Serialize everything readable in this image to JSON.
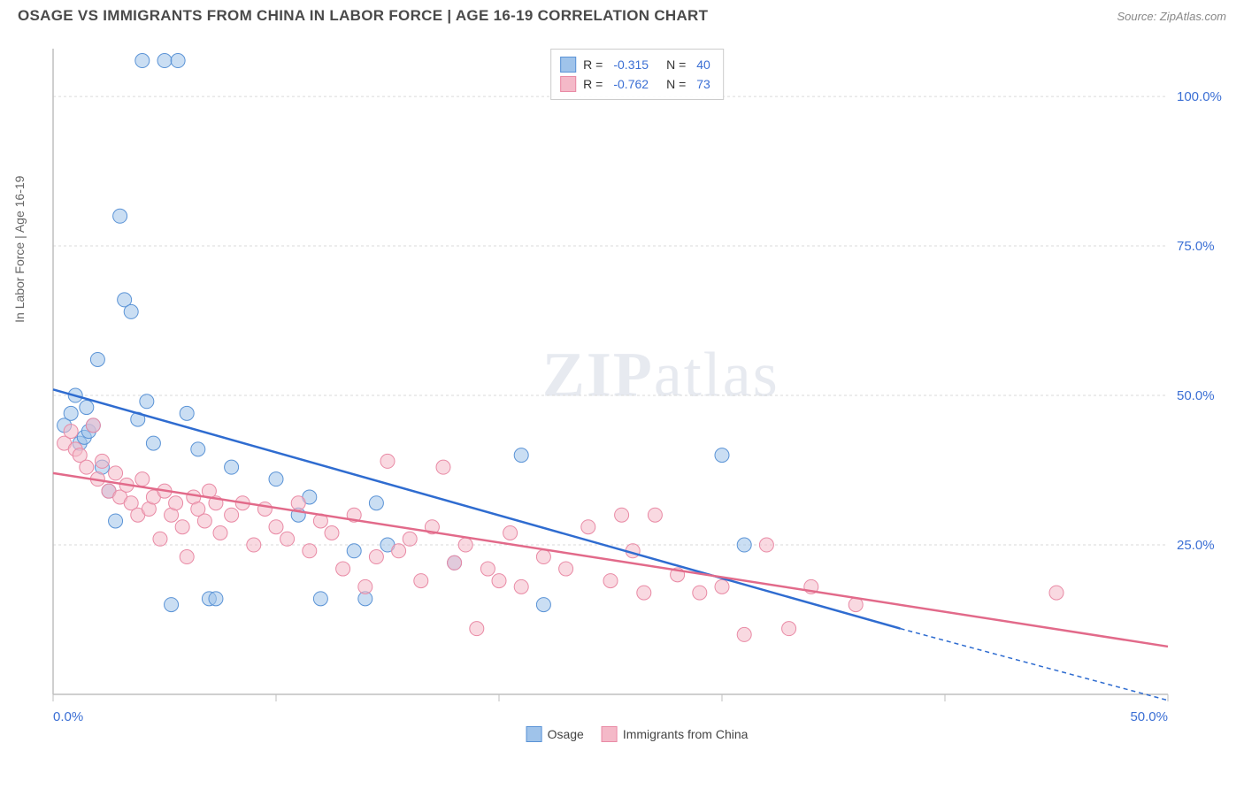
{
  "header": {
    "title": "OSAGE VS IMMIGRANTS FROM CHINA IN LABOR FORCE | AGE 16-19 CORRELATION CHART",
    "source": "Source: ZipAtlas.com"
  },
  "watermark": {
    "part1": "ZIP",
    "part2": "atlas"
  },
  "chart": {
    "type": "scatter",
    "ylabel": "In Labor Force | Age 16-19",
    "xlim": [
      0,
      50
    ],
    "ylim": [
      0,
      108
    ],
    "xtick_positions": [
      0,
      10,
      20,
      30,
      40,
      50
    ],
    "xtick_labels": [
      "0.0%",
      "",
      "",
      "",
      "",
      "50.0%"
    ],
    "ytick_positions": [
      25,
      50,
      75,
      100
    ],
    "ytick_labels": [
      "25.0%",
      "50.0%",
      "75.0%",
      "100.0%"
    ],
    "grid_color": "#d9d9d9",
    "axis_color": "#bfbfbf",
    "background_color": "#ffffff",
    "tick_label_color": "#3b6fd4",
    "marker_radius": 8,
    "marker_opacity": 0.55,
    "series": [
      {
        "name": "Osage",
        "color_fill": "#9fc3ea",
        "color_stroke": "#5a93d6",
        "line_color": "#2f6cd0",
        "R": "-0.315",
        "N": "40",
        "trend": {
          "x1": 0,
          "y1": 51,
          "x2": 38,
          "y2": 11,
          "dash_x1": 38,
          "dash_y1": 11,
          "dash_x2": 50,
          "dash_y2": -1
        },
        "points": [
          [
            0.5,
            45
          ],
          [
            0.8,
            47
          ],
          [
            1.0,
            50
          ],
          [
            1.2,
            42
          ],
          [
            1.4,
            43
          ],
          [
            1.5,
            48
          ],
          [
            1.6,
            44
          ],
          [
            1.8,
            45
          ],
          [
            2.0,
            56
          ],
          [
            2.2,
            38
          ],
          [
            2.5,
            34
          ],
          [
            2.8,
            29
          ],
          [
            3.0,
            80
          ],
          [
            3.2,
            66
          ],
          [
            3.5,
            64
          ],
          [
            3.8,
            46
          ],
          [
            4.0,
            106
          ],
          [
            4.2,
            49
          ],
          [
            4.5,
            42
          ],
          [
            5.0,
            106
          ],
          [
            5.3,
            15
          ],
          [
            5.6,
            106
          ],
          [
            6.0,
            47
          ],
          [
            6.5,
            41
          ],
          [
            7.0,
            16
          ],
          [
            7.3,
            16
          ],
          [
            8.0,
            38
          ],
          [
            10.0,
            36
          ],
          [
            11.0,
            30
          ],
          [
            11.5,
            33
          ],
          [
            12.0,
            16
          ],
          [
            13.5,
            24
          ],
          [
            14.0,
            16
          ],
          [
            14.5,
            32
          ],
          [
            15.0,
            25
          ],
          [
            18.0,
            22
          ],
          [
            21.0,
            40
          ],
          [
            22.0,
            15
          ],
          [
            30.0,
            40
          ],
          [
            31.0,
            25
          ]
        ]
      },
      {
        "name": "Immigrants from China",
        "color_fill": "#f4b9c8",
        "color_stroke": "#e98aa5",
        "line_color": "#e26a8a",
        "R": "-0.762",
        "N": "73",
        "trend": {
          "x1": 0,
          "y1": 37,
          "x2": 50,
          "y2": 8
        },
        "points": [
          [
            0.5,
            42
          ],
          [
            0.8,
            44
          ],
          [
            1.0,
            41
          ],
          [
            1.2,
            40
          ],
          [
            1.5,
            38
          ],
          [
            1.8,
            45
          ],
          [
            2.0,
            36
          ],
          [
            2.2,
            39
          ],
          [
            2.5,
            34
          ],
          [
            2.8,
            37
          ],
          [
            3.0,
            33
          ],
          [
            3.3,
            35
          ],
          [
            3.5,
            32
          ],
          [
            3.8,
            30
          ],
          [
            4.0,
            36
          ],
          [
            4.3,
            31
          ],
          [
            4.5,
            33
          ],
          [
            4.8,
            26
          ],
          [
            5.0,
            34
          ],
          [
            5.3,
            30
          ],
          [
            5.5,
            32
          ],
          [
            5.8,
            28
          ],
          [
            6.0,
            23
          ],
          [
            6.3,
            33
          ],
          [
            6.5,
            31
          ],
          [
            6.8,
            29
          ],
          [
            7.0,
            34
          ],
          [
            7.3,
            32
          ],
          [
            7.5,
            27
          ],
          [
            8.0,
            30
          ],
          [
            8.5,
            32
          ],
          [
            9.0,
            25
          ],
          [
            9.5,
            31
          ],
          [
            10.0,
            28
          ],
          [
            10.5,
            26
          ],
          [
            11.0,
            32
          ],
          [
            11.5,
            24
          ],
          [
            12.0,
            29
          ],
          [
            12.5,
            27
          ],
          [
            13.0,
            21
          ],
          [
            13.5,
            30
          ],
          [
            14.0,
            18
          ],
          [
            14.5,
            23
          ],
          [
            15.0,
            39
          ],
          [
            15.5,
            24
          ],
          [
            16.0,
            26
          ],
          [
            16.5,
            19
          ],
          [
            17.0,
            28
          ],
          [
            17.5,
            38
          ],
          [
            18.0,
            22
          ],
          [
            18.5,
            25
          ],
          [
            19.0,
            11
          ],
          [
            19.5,
            21
          ],
          [
            20.0,
            19
          ],
          [
            20.5,
            27
          ],
          [
            21.0,
            18
          ],
          [
            22.0,
            23
          ],
          [
            23.0,
            21
          ],
          [
            24.0,
            28
          ],
          [
            25.0,
            19
          ],
          [
            25.5,
            30
          ],
          [
            26.0,
            24
          ],
          [
            26.5,
            17
          ],
          [
            27.0,
            30
          ],
          [
            28.0,
            20
          ],
          [
            29.0,
            17
          ],
          [
            30.0,
            18
          ],
          [
            31.0,
            10
          ],
          [
            32.0,
            25
          ],
          [
            33.0,
            11
          ],
          [
            34.0,
            18
          ],
          [
            36.0,
            15
          ],
          [
            45.0,
            17
          ]
        ]
      }
    ],
    "legend_bottom": [
      {
        "label": "Osage",
        "fill": "#9fc3ea",
        "stroke": "#5a93d6"
      },
      {
        "label": "Immigrants from China",
        "fill": "#f4b9c8",
        "stroke": "#e98aa5"
      }
    ]
  }
}
